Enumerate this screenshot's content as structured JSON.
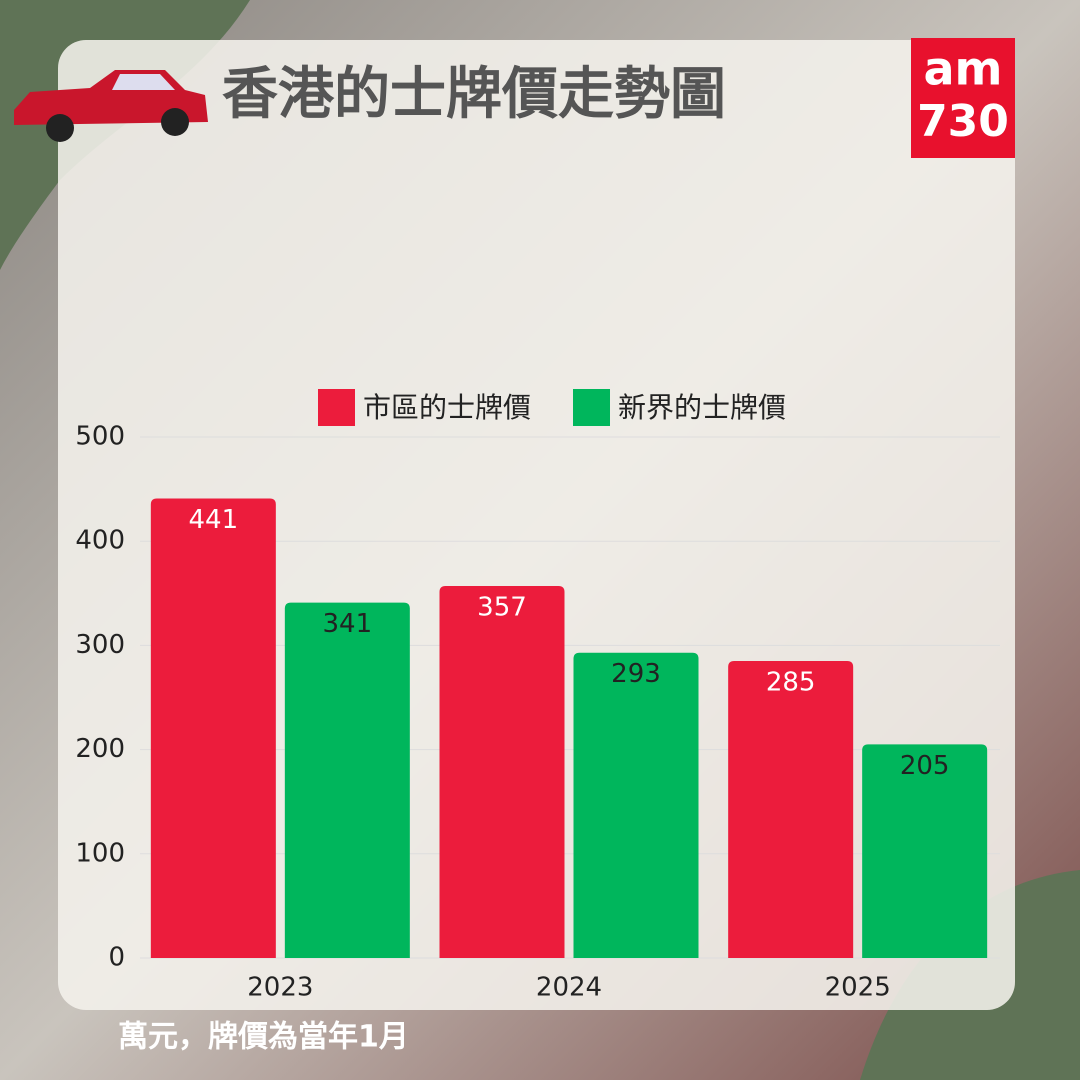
{
  "logo": {
    "top": "am",
    "bottom": "730"
  },
  "chart_data": {
    "type": "bar",
    "title": "香港的士牌價走勢圖",
    "footnote": "萬元，牌價為當年1月",
    "categories": [
      "2023",
      "2024",
      "2025"
    ],
    "series": [
      {
        "name": "市區的士牌價",
        "color": "#ec1c3c",
        "values": [
          441,
          357,
          285
        ]
      },
      {
        "name": "新界的士牌價",
        "color": "#00b65c",
        "values": [
          341,
          293,
          205
        ]
      }
    ],
    "ylim": [
      0,
      500
    ],
    "yticks": [
      0,
      100,
      200,
      300,
      400,
      500
    ],
    "grid": true
  }
}
